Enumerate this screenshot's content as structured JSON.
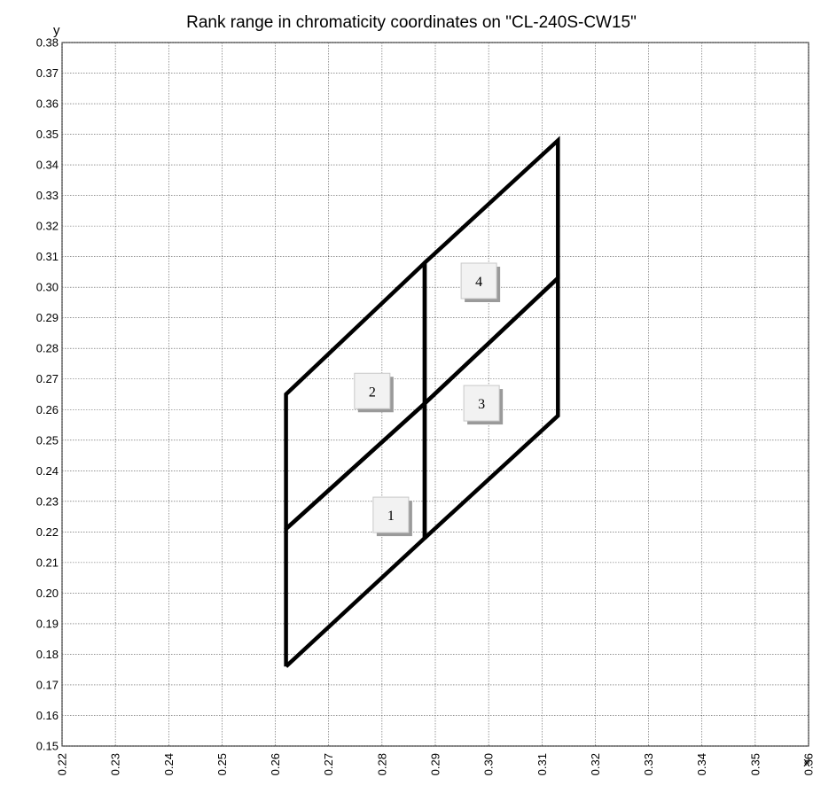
{
  "chart_data": {
    "type": "line",
    "title": "Rank range in chromaticity coordinates on \"CL-240S-CW15\"",
    "xlabel": "x",
    "ylabel": "y",
    "xlim": [
      0.22,
      0.36
    ],
    "ylim": [
      0.15,
      0.38
    ],
    "x_ticks": [
      "0.22",
      "0.23",
      "0.24",
      "0.25",
      "0.26",
      "0.27",
      "0.28",
      "0.29",
      "0.30",
      "0.31",
      "0.32",
      "0.33",
      "0.34",
      "0.35",
      "0.36"
    ],
    "y_ticks": [
      "0.15",
      "0.16",
      "0.17",
      "0.18",
      "0.19",
      "0.20",
      "0.21",
      "0.22",
      "0.23",
      "0.24",
      "0.25",
      "0.26",
      "0.27",
      "0.28",
      "0.29",
      "0.30",
      "0.31",
      "0.32",
      "0.33",
      "0.34",
      "0.35",
      "0.36",
      "0.37",
      "0.38"
    ],
    "grid": true,
    "line_color": "#000000",
    "series": [
      {
        "rank": "1",
        "points": [
          [
            0.262,
            0.176
          ],
          [
            0.288,
            0.218
          ],
          [
            0.288,
            0.262
          ],
          [
            0.262,
            0.221
          ],
          [
            0.262,
            0.176
          ]
        ]
      },
      {
        "rank": "2",
        "points": [
          [
            0.262,
            0.221
          ],
          [
            0.288,
            0.262
          ],
          [
            0.288,
            0.308
          ],
          [
            0.262,
            0.265
          ],
          [
            0.262,
            0.221
          ]
        ]
      },
      {
        "rank": "3",
        "points": [
          [
            0.288,
            0.218
          ],
          [
            0.313,
            0.258
          ],
          [
            0.313,
            0.303
          ],
          [
            0.288,
            0.262
          ],
          [
            0.288,
            0.218
          ]
        ]
      },
      {
        "rank": "4",
        "points": [
          [
            0.288,
            0.262
          ],
          [
            0.313,
            0.303
          ],
          [
            0.313,
            0.348
          ],
          [
            0.288,
            0.308
          ],
          [
            0.288,
            0.262
          ]
        ]
      }
    ],
    "annotations": [
      {
        "text": "1",
        "x": 0.282,
        "y": 0.225
      },
      {
        "text": "2",
        "x": 0.2785,
        "y": 0.2655
      },
      {
        "text": "3",
        "x": 0.299,
        "y": 0.2615
      },
      {
        "text": "4",
        "x": 0.2985,
        "y": 0.3015
      }
    ]
  }
}
